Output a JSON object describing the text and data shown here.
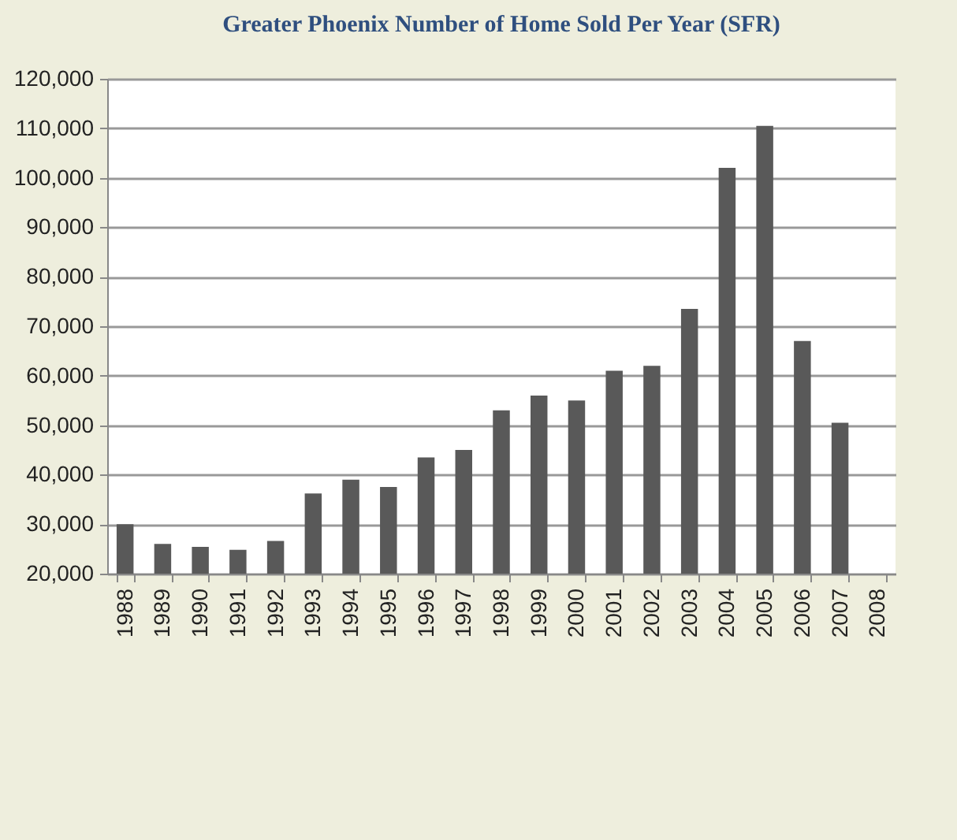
{
  "chart_data": {
    "type": "bar",
    "title": "Greater Phoenix Number of Home Sold Per Year (SFR)",
    "categories": [
      "1988",
      "1989",
      "1990",
      "1991",
      "1992",
      "1993",
      "1994",
      "1995",
      "1996",
      "1997",
      "1998",
      "1999",
      "2000",
      "2001",
      "2002",
      "2003",
      "2004",
      "2005",
      "2006",
      "2007",
      "2008"
    ],
    "values": [
      30000,
      26000,
      25400,
      24800,
      26600,
      36200,
      39000,
      37500,
      43500,
      45000,
      53000,
      56000,
      55000,
      61000,
      62000,
      73500,
      102000,
      110500,
      67000,
      50500,
      null
    ],
    "color": "#595959",
    "ylim": [
      20000,
      120000
    ],
    "yticks": [
      {
        "value": 20000,
        "label": "20,000"
      },
      {
        "value": 30000,
        "label": "30,000"
      },
      {
        "value": 40000,
        "label": "40,000"
      },
      {
        "value": 50000,
        "label": "50,000"
      },
      {
        "value": 60000,
        "label": "60,000"
      },
      {
        "value": 70000,
        "label": "70,000"
      },
      {
        "value": 80000,
        "label": "80,000"
      },
      {
        "value": 90000,
        "label": "90,000"
      },
      {
        "value": 100000,
        "label": "100,000"
      },
      {
        "value": 110000,
        "label": "110,000"
      },
      {
        "value": 120000,
        "label": "120,000"
      }
    ],
    "grid": "y"
  }
}
